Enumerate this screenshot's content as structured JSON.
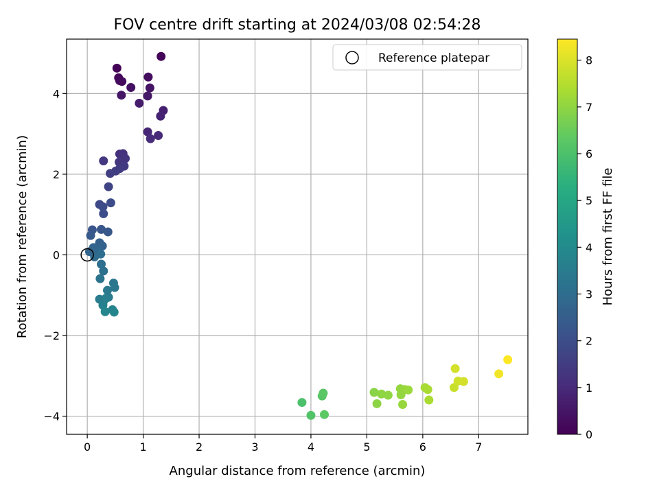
{
  "chart_data": {
    "type": "scatter",
    "title": "FOV centre drift starting at 2024/03/08 02:54:28",
    "xlabel": "Angular distance from reference (arcmin)",
    "ylabel": "Rotation from reference (arcmin)",
    "xlim": [
      -0.37,
      7.88
    ],
    "ylim": [
      -4.45,
      5.35
    ],
    "xticks": [
      0,
      1,
      2,
      3,
      4,
      5,
      6,
      7
    ],
    "yticks": [
      -4,
      -2,
      0,
      2,
      4
    ],
    "grid": true,
    "legend": {
      "placement": "top-right",
      "entries": [
        "Reference platepar"
      ]
    },
    "reference_point": {
      "x": 0,
      "y": 0
    },
    "colorbar": {
      "label": "Hours from first FF file",
      "range": [
        0,
        8.45
      ],
      "ticks": [
        0,
        1,
        2,
        3,
        4,
        5,
        6,
        7,
        8
      ],
      "colormap": "viridis"
    },
    "points": [
      {
        "x": 0.53,
        "y": 4.63,
        "c": 0.05
      },
      {
        "x": 1.32,
        "y": 4.92,
        "c": 0.1
      },
      {
        "x": 0.56,
        "y": 4.39,
        "c": 0.15
      },
      {
        "x": 0.58,
        "y": 4.32,
        "c": 0.2
      },
      {
        "x": 0.62,
        "y": 4.3,
        "c": 0.25
      },
      {
        "x": 1.09,
        "y": 4.41,
        "c": 0.3
      },
      {
        "x": 0.78,
        "y": 4.15,
        "c": 0.4
      },
      {
        "x": 1.12,
        "y": 4.14,
        "c": 0.45
      },
      {
        "x": 0.61,
        "y": 3.96,
        "c": 0.5
      },
      {
        "x": 1.08,
        "y": 3.94,
        "c": 0.55
      },
      {
        "x": 0.93,
        "y": 3.76,
        "c": 0.65
      },
      {
        "x": 1.36,
        "y": 3.58,
        "c": 0.75
      },
      {
        "x": 1.31,
        "y": 3.44,
        "c": 0.8
      },
      {
        "x": 1.08,
        "y": 3.05,
        "c": 0.9
      },
      {
        "x": 1.27,
        "y": 2.96,
        "c": 1.0
      },
      {
        "x": 1.13,
        "y": 2.88,
        "c": 1.05
      },
      {
        "x": 0.58,
        "y": 2.5,
        "c": 1.15
      },
      {
        "x": 0.64,
        "y": 2.51,
        "c": 1.2
      },
      {
        "x": 0.68,
        "y": 2.39,
        "c": 1.25
      },
      {
        "x": 0.57,
        "y": 2.3,
        "c": 1.3
      },
      {
        "x": 0.29,
        "y": 2.33,
        "c": 1.35
      },
      {
        "x": 0.66,
        "y": 2.2,
        "c": 1.4
      },
      {
        "x": 0.58,
        "y": 2.14,
        "c": 1.45
      },
      {
        "x": 0.51,
        "y": 2.08,
        "c": 1.5
      },
      {
        "x": 0.41,
        "y": 2.02,
        "c": 1.55
      },
      {
        "x": 0.38,
        "y": 1.69,
        "c": 1.7
      },
      {
        "x": 0.22,
        "y": 1.25,
        "c": 1.85
      },
      {
        "x": 0.28,
        "y": 1.19,
        "c": 1.9
      },
      {
        "x": 0.42,
        "y": 1.29,
        "c": 1.95
      },
      {
        "x": 0.29,
        "y": 1.02,
        "c": 2.0
      },
      {
        "x": 0.09,
        "y": 0.62,
        "c": 2.2
      },
      {
        "x": 0.25,
        "y": 0.63,
        "c": 2.25
      },
      {
        "x": 0.37,
        "y": 0.57,
        "c": 2.3
      },
      {
        "x": 0.06,
        "y": 0.48,
        "c": 2.35
      },
      {
        "x": 0.22,
        "y": 0.3,
        "c": 2.6
      },
      {
        "x": 0.27,
        "y": 0.22,
        "c": 2.65
      },
      {
        "x": 0.11,
        "y": 0.18,
        "c": 2.7
      },
      {
        "x": 0.04,
        "y": 0.08,
        "c": 2.75
      },
      {
        "x": 0.18,
        "y": 0.12,
        "c": 2.8
      },
      {
        "x": 0.13,
        "y": -0.05,
        "c": 2.9
      },
      {
        "x": 0.24,
        "y": 0.02,
        "c": 3.0
      },
      {
        "x": 0.25,
        "y": -0.23,
        "c": 3.05
      },
      {
        "x": 0.29,
        "y": -0.4,
        "c": 3.1
      },
      {
        "x": 0.23,
        "y": -0.59,
        "c": 3.2
      },
      {
        "x": 0.47,
        "y": -0.7,
        "c": 3.3
      },
      {
        "x": 0.49,
        "y": -0.81,
        "c": 3.35
      },
      {
        "x": 0.36,
        "y": -0.88,
        "c": 3.4
      },
      {
        "x": 0.38,
        "y": -1.05,
        "c": 3.45
      },
      {
        "x": 0.22,
        "y": -1.1,
        "c": 3.5
      },
      {
        "x": 0.29,
        "y": -1.15,
        "c": 3.55
      },
      {
        "x": 0.33,
        "y": -1.08,
        "c": 3.6
      },
      {
        "x": 0.28,
        "y": -1.25,
        "c": 3.65
      },
      {
        "x": 0.45,
        "y": -1.36,
        "c": 3.75
      },
      {
        "x": 0.48,
        "y": -1.42,
        "c": 3.8
      },
      {
        "x": 0.32,
        "y": -1.41,
        "c": 3.85
      },
      {
        "x": 3.84,
        "y": -3.66,
        "c": 6.0
      },
      {
        "x": 4.0,
        "y": -3.98,
        "c": 6.1
      },
      {
        "x": 4.2,
        "y": -3.5,
        "c": 6.2
      },
      {
        "x": 4.22,
        "y": -3.43,
        "c": 6.25
      },
      {
        "x": 4.24,
        "y": -3.96,
        "c": 6.3
      },
      {
        "x": 5.13,
        "y": -3.41,
        "c": 6.9
      },
      {
        "x": 5.18,
        "y": -3.69,
        "c": 6.95
      },
      {
        "x": 5.26,
        "y": -3.45,
        "c": 7.0
      },
      {
        "x": 5.38,
        "y": -3.48,
        "c": 7.0
      },
      {
        "x": 5.6,
        "y": -3.32,
        "c": 7.05
      },
      {
        "x": 5.61,
        "y": -3.47,
        "c": 7.05
      },
      {
        "x": 5.64,
        "y": -3.71,
        "c": 7.1
      },
      {
        "x": 5.68,
        "y": -3.34,
        "c": 7.1
      },
      {
        "x": 5.74,
        "y": -3.35,
        "c": 7.15
      },
      {
        "x": 6.04,
        "y": -3.29,
        "c": 7.3
      },
      {
        "x": 6.09,
        "y": -3.34,
        "c": 7.35
      },
      {
        "x": 6.11,
        "y": -3.6,
        "c": 7.35
      },
      {
        "x": 6.56,
        "y": -3.29,
        "c": 7.75
      },
      {
        "x": 6.58,
        "y": -2.82,
        "c": 7.9
      },
      {
        "x": 6.63,
        "y": -3.13,
        "c": 7.85
      },
      {
        "x": 6.73,
        "y": -3.14,
        "c": 7.9
      },
      {
        "x": 7.36,
        "y": -2.95,
        "c": 8.3
      },
      {
        "x": 7.52,
        "y": -2.6,
        "c": 8.45
      }
    ]
  }
}
